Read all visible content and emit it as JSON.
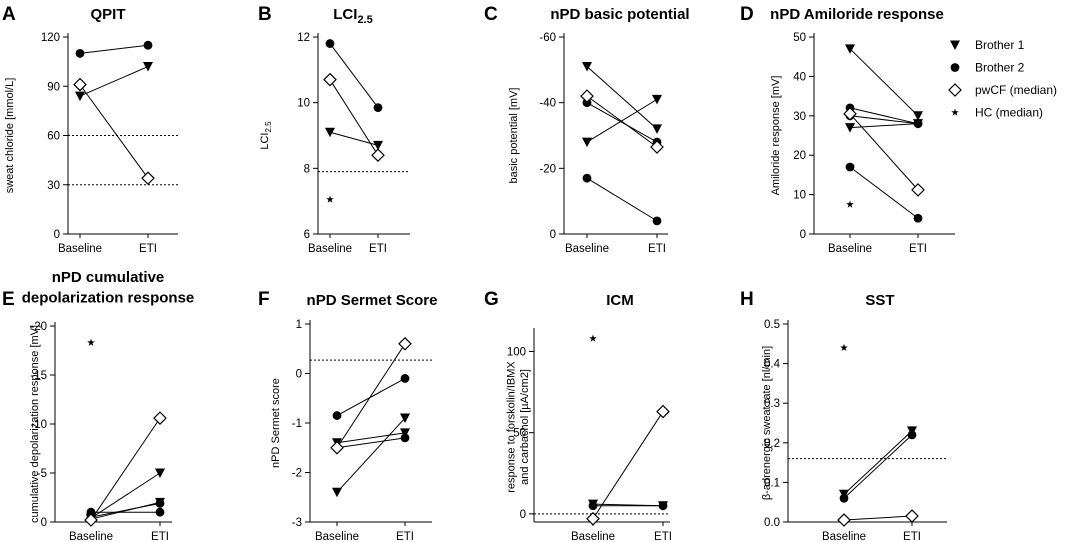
{
  "legend": {
    "series": [
      {
        "key": "b1",
        "label": "Brother 1",
        "marker": "triangle-down-icon"
      },
      {
        "key": "b2",
        "label": "Brother 2",
        "marker": "circle-icon"
      },
      {
        "key": "pw",
        "label": "pwCF (median)",
        "marker": "open-diamond-icon"
      },
      {
        "key": "hc",
        "label": "HC (median)",
        "marker": "star-icon"
      }
    ]
  },
  "chart_data": [
    {
      "panel": "A",
      "title": "QPIT",
      "type": "line",
      "ylabel": "sweat chloride [mmol/L]",
      "categories": [
        "Baseline",
        "ETI"
      ],
      "ylim": [
        0,
        120
      ],
      "yticks": [
        0,
        30,
        60,
        90,
        120
      ],
      "inverted": false,
      "series": [
        {
          "name": "Brother 1",
          "marker": "b1",
          "values": [
            84,
            102
          ]
        },
        {
          "name": "Brother 2",
          "marker": "b2",
          "values": [
            110,
            115
          ]
        },
        {
          "name": "pwCF (median)",
          "marker": "pw",
          "values": [
            91,
            34
          ]
        }
      ],
      "reference_lines": [
        60,
        30
      ]
    },
    {
      "panel": "B",
      "title": "LCI",
      "title_sub": "2.5",
      "type": "line",
      "ylabel": "LCI",
      "ylabel_sub": "2.5",
      "categories": [
        "Baseline",
        "ETI"
      ],
      "ylim": [
        6,
        12
      ],
      "yticks": [
        6,
        8,
        10,
        12
      ],
      "inverted": false,
      "series": [
        {
          "name": "Brother 1",
          "marker": "b1",
          "values": [
            9.1,
            8.7
          ]
        },
        {
          "name": "Brother 2",
          "marker": "b2",
          "values": [
            11.8,
            9.85
          ]
        },
        {
          "name": "pwCF (median)",
          "marker": "pw",
          "values": [
            10.7,
            8.4
          ]
        }
      ],
      "hc_value": 7.05,
      "reference_lines": [
        7.9
      ]
    },
    {
      "panel": "C",
      "title": "nPD basic potential",
      "type": "line",
      "ylabel": "basic potential [mV]",
      "categories": [
        "Baseline",
        "ETI"
      ],
      "ylim": [
        0,
        -60
      ],
      "yticks": [
        0,
        -20,
        -40,
        -60
      ],
      "inverted": true,
      "series": [
        {
          "name": "Brother 1",
          "marker": "b1",
          "values": [
            -51,
            -32
          ]
        },
        {
          "name": "Brother 1",
          "marker": "b1",
          "values": [
            -28,
            -41
          ]
        },
        {
          "name": "Brother 2",
          "marker": "b2",
          "values": [
            -40,
            -28
          ]
        },
        {
          "name": "Brother 2",
          "marker": "b2",
          "values": [
            -17,
            -4
          ]
        },
        {
          "name": "pwCF (median)",
          "marker": "pw",
          "values": [
            -42,
            -26.5
          ]
        }
      ],
      "hc_value": -17,
      "reference_lines": []
    },
    {
      "panel": "D",
      "title": "nPD Amiloride response",
      "type": "line",
      "ylabel": "Amiloride response [mV]",
      "categories": [
        "Baseline",
        "ETI"
      ],
      "ylim": [
        0,
        50
      ],
      "yticks": [
        0,
        10,
        20,
        30,
        40,
        50
      ],
      "inverted": false,
      "series": [
        {
          "name": "Brother 1",
          "marker": "b1",
          "values": [
            47,
            30
          ]
        },
        {
          "name": "Brother 1",
          "marker": "b1",
          "values": [
            27,
            28
          ]
        },
        {
          "name": "Brother 2",
          "marker": "b2",
          "values": [
            32,
            28
          ]
        },
        {
          "name": "Brother 2",
          "marker": "b2",
          "values": [
            30,
            28
          ]
        },
        {
          "name": "Brother 2",
          "marker": "b2",
          "values": [
            17,
            4
          ]
        },
        {
          "name": "pwCF (median)",
          "marker": "pw",
          "values": [
            30.5,
            11.2
          ]
        }
      ],
      "hc_value": 7.5,
      "reference_lines": [
        0
      ]
    },
    {
      "panel": "E",
      "title": "nPD cumulative",
      "title2": "depolarization response",
      "type": "line",
      "ylabel": "cumulative depolarization response [mV]",
      "categories": [
        "Baseline",
        "ETI"
      ],
      "ylim": [
        0,
        -20
      ],
      "yticks": [
        0,
        -5,
        -10,
        -15,
        -20
      ],
      "inverted": true,
      "series": [
        {
          "name": "Brother 1",
          "marker": "b1",
          "values": [
            -0.4,
            -5
          ]
        },
        {
          "name": "Brother 1",
          "marker": "b1",
          "values": [
            -0.3,
            -2
          ]
        },
        {
          "name": "Brother 2",
          "marker": "b2",
          "values": [
            -1,
            -1
          ]
        },
        {
          "name": "Brother 2",
          "marker": "b2",
          "values": [
            -0.5,
            -1.9
          ]
        },
        {
          "name": "pwCF (median)",
          "marker": "pw",
          "values": [
            -0.2,
            -10.6
          ]
        }
      ],
      "hc_value": -18.3,
      "reference_lines": []
    },
    {
      "panel": "F",
      "title": "nPD Sermet Score",
      "type": "line",
      "ylabel": "nPD Sermet score",
      "categories": [
        "Baseline",
        "ETI"
      ],
      "ylim": [
        -3,
        1
      ],
      "yticks": [
        -3,
        -2,
        -1,
        0,
        1
      ],
      "inverted": false,
      "series": [
        {
          "name": "Brother 1",
          "marker": "b1",
          "values": [
            -2.4,
            -0.9
          ]
        },
        {
          "name": "Brother 1",
          "marker": "b1",
          "values": [
            -1.4,
            -1.2
          ]
        },
        {
          "name": "Brother 2",
          "marker": "b2",
          "values": [
            -0.85,
            -0.1
          ]
        },
        {
          "name": "Brother 2",
          "marker": "b2",
          "values": [
            -1.5,
            -1.3
          ]
        },
        {
          "name": "pwCF (median)",
          "marker": "pw",
          "values": [
            -1.5,
            0.6
          ]
        }
      ],
      "reference_lines": [
        0.27
      ]
    },
    {
      "panel": "G",
      "title": "ICM",
      "type": "line",
      "ylabel": "response to forskolin/IBMX",
      "ylabel2": "and carbachol [µA/cm2]",
      "categories": [
        "Baseline",
        "ETI"
      ],
      "ylim": [
        -5,
        112
      ],
      "yticks": [
        0,
        50,
        100
      ],
      "inverted": false,
      "series": [
        {
          "name": "Brother 1",
          "marker": "b1",
          "values": [
            6,
            5
          ]
        },
        {
          "name": "Brother 2",
          "marker": "b2",
          "values": [
            5,
            5
          ]
        },
        {
          "name": "pwCF (median)",
          "marker": "pw",
          "values": [
            -3,
            63
          ]
        }
      ],
      "hc_value": 108,
      "reference_lines": [
        0
      ]
    },
    {
      "panel": "H",
      "title": "SST",
      "type": "line",
      "ylabel": "β-adrenergic sweat rate [nl/min]",
      "categories": [
        "Baseline",
        "ETI"
      ],
      "ylim": [
        0,
        0.5
      ],
      "yticks": [
        0.0,
        0.1,
        0.2,
        0.3,
        0.4,
        0.5
      ],
      "inverted": false,
      "series": [
        {
          "name": "Brother 1",
          "marker": "b1",
          "values": [
            0.07,
            0.23
          ]
        },
        {
          "name": "Brother 2",
          "marker": "b2",
          "values": [
            0.06,
            0.22
          ]
        },
        {
          "name": "pwCF (median)",
          "marker": "pw",
          "values": [
            0.005,
            0.015
          ]
        }
      ],
      "hc_value": 0.44,
      "reference_lines": [
        0.16
      ]
    }
  ]
}
